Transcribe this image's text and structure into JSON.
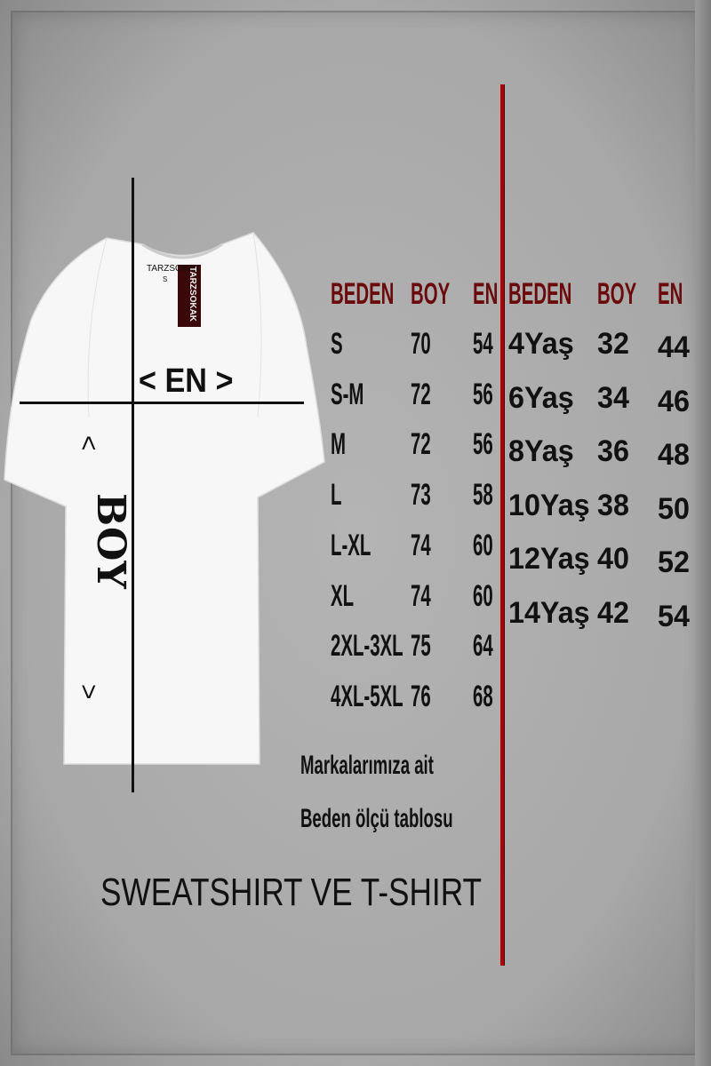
{
  "shirt": {
    "neck_label": "TARZSOKAK",
    "neck_size": "S",
    "hang_tag": "TARZSOKAK",
    "width_marker": "< EN >",
    "length_marker_top": "<",
    "length_marker_text": "BOY",
    "length_marker_bottom": ">"
  },
  "adult_table": {
    "headers": [
      "BEDEN",
      "BOY",
      "EN"
    ],
    "rows": [
      [
        "S",
        "70",
        "54"
      ],
      [
        "S-M",
        "72",
        "56"
      ],
      [
        "M",
        "72",
        "56"
      ],
      [
        "L",
        "73",
        "58"
      ],
      [
        "L-XL",
        "74",
        "60"
      ],
      [
        "XL",
        "74",
        "60"
      ],
      [
        "2XL-3XL",
        "75",
        "64"
      ],
      [
        "4XL-5XL",
        "76",
        "68"
      ]
    ]
  },
  "kids_table": {
    "headers": [
      "BEDEN",
      "BOY",
      "EN"
    ],
    "rows": [
      [
        "4Yaş",
        "32",
        "44"
      ],
      [
        "6Yaş",
        "34",
        "46"
      ],
      [
        "8Yaş",
        "36",
        "48"
      ],
      [
        "10Yaş",
        "38",
        "50"
      ],
      [
        "12Yaş",
        "40",
        "52"
      ],
      [
        "14Yaş",
        "42",
        "54"
      ]
    ]
  },
  "note_line1": "Markalarımıza ait",
  "note_line2": "Beden ölçü tablosu",
  "product_type": "SWEATSHIRT VE T-SHIRT",
  "colors": {
    "header": "#6a0a0a",
    "divider": "#b00000",
    "background": "#a9a9a9"
  }
}
